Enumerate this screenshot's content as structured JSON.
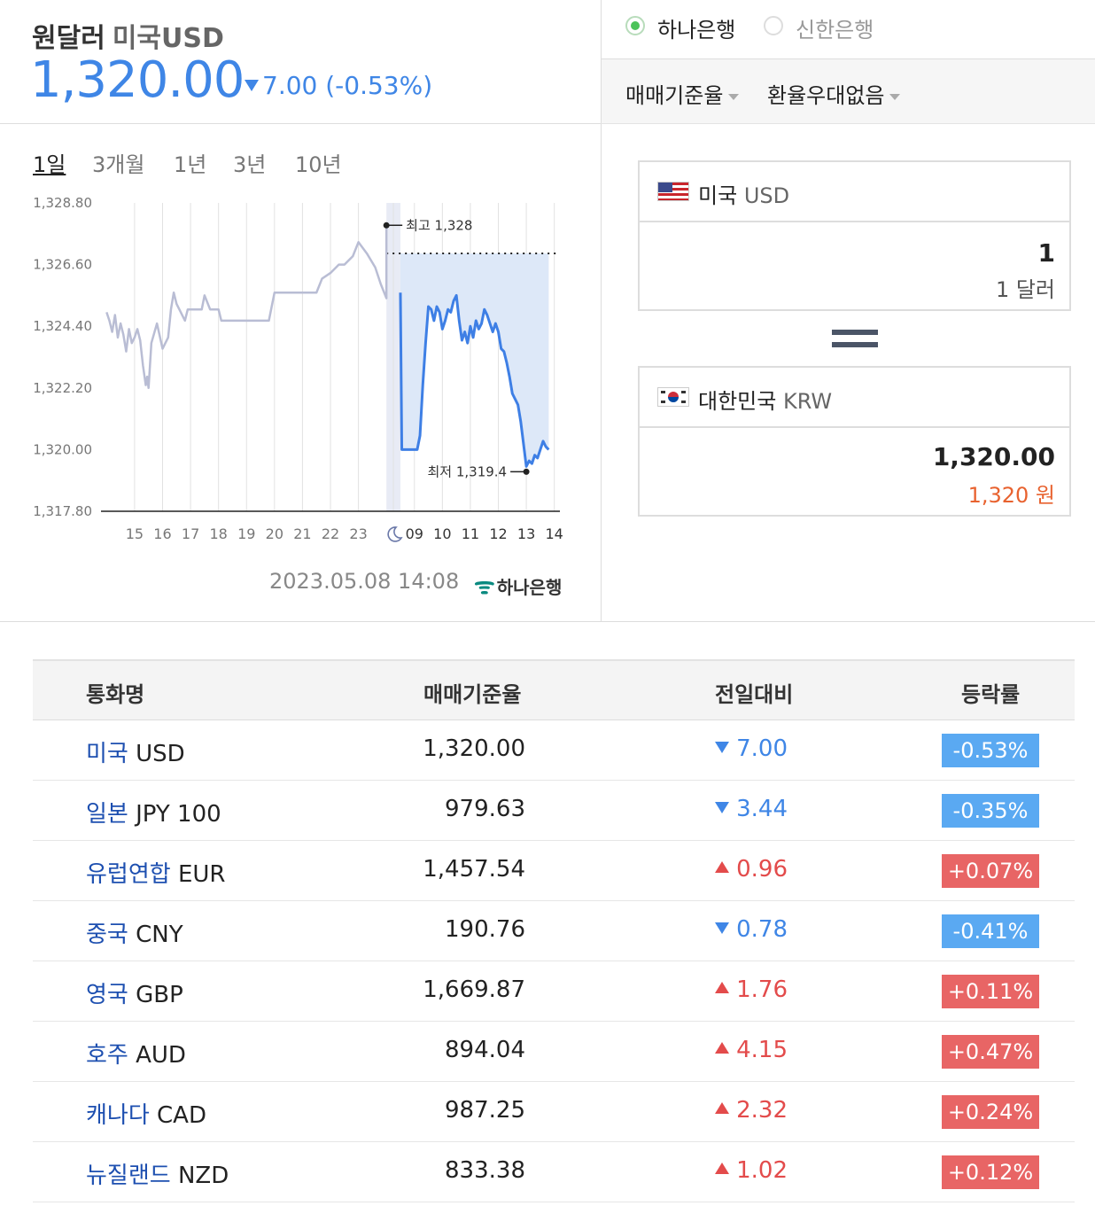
{
  "header": {
    "title": "원달러",
    "subtitle": "미국USD",
    "rate": "1,320.00",
    "change": "7.00 (-0.53%)",
    "direction": "down"
  },
  "banks": [
    {
      "label": "하나은행",
      "selected": true
    },
    {
      "label": "신한은행",
      "selected": false
    }
  ],
  "dropdowns": {
    "rate_type": "매매기준율",
    "preference": "환율우대없음"
  },
  "periods": [
    "1일",
    "3개월",
    "1년",
    "3년",
    "10년"
  ],
  "active_period": "1일",
  "chart_meta": {
    "timestamp": "2023.05.08 14:08",
    "bank_logo_text": "하나은행",
    "high_label": "최고 1,328",
    "low_label": "최저 1,319.4"
  },
  "chart_data": {
    "type": "line",
    "y_ticks": [
      "1,328.80",
      "1,326.60",
      "1,324.40",
      "1,322.20",
      "1,320.00",
      "1,317.80"
    ],
    "ylim": [
      1317.8,
      1328.8
    ],
    "x_ticks": [
      "15",
      "16",
      "17",
      "18",
      "19",
      "20",
      "21",
      "22",
      "23",
      "moon",
      "09",
      "10",
      "11",
      "12",
      "13",
      "14"
    ],
    "grid": true,
    "previous_close": 1327.0,
    "high": 1328,
    "low": 1319.4,
    "series": [
      {
        "segment": "overnight",
        "color": "#b9bdd4",
        "points": [
          [
            14.0,
            1324.9
          ],
          [
            14.1,
            1324.6
          ],
          [
            14.2,
            1324.2
          ],
          [
            14.3,
            1324.8
          ],
          [
            14.4,
            1324.0
          ],
          [
            14.5,
            1324.5
          ],
          [
            14.6,
            1324.1
          ],
          [
            14.7,
            1323.5
          ],
          [
            14.8,
            1324.3
          ],
          [
            14.9,
            1323.8
          ],
          [
            15.0,
            1324.0
          ],
          [
            15.1,
            1324.3
          ],
          [
            15.2,
            1323.9
          ],
          [
            15.3,
            1323.0
          ],
          [
            15.4,
            1322.3
          ],
          [
            15.45,
            1322.6
          ],
          [
            15.5,
            1322.2
          ],
          [
            15.6,
            1323.8
          ],
          [
            15.8,
            1324.5
          ],
          [
            16.0,
            1323.6
          ],
          [
            16.2,
            1324.0
          ],
          [
            16.3,
            1325.0
          ],
          [
            16.4,
            1325.6
          ],
          [
            16.5,
            1325.2
          ],
          [
            16.6,
            1325.0
          ],
          [
            16.8,
            1324.6
          ],
          [
            16.9,
            1325.0
          ],
          [
            17.4,
            1325.0
          ],
          [
            17.5,
            1325.5
          ],
          [
            17.7,
            1325.0
          ],
          [
            18.0,
            1325.0
          ],
          [
            18.1,
            1324.6
          ],
          [
            19.8,
            1324.6
          ],
          [
            19.9,
            1325.1
          ],
          [
            20.0,
            1325.6
          ],
          [
            21.5,
            1325.6
          ],
          [
            21.7,
            1326.1
          ],
          [
            22.0,
            1326.3
          ],
          [
            22.3,
            1326.6
          ],
          [
            22.5,
            1326.6
          ],
          [
            22.8,
            1326.9
          ],
          [
            23.0,
            1327.4
          ],
          [
            23.3,
            1327.0
          ],
          [
            23.6,
            1326.5
          ],
          [
            23.8,
            1325.9
          ],
          [
            24.0,
            1325.4
          ],
          [
            24.0,
            1328.0
          ]
        ]
      },
      {
        "segment": "today",
        "color": "#3e7fe5",
        "points": [
          [
            24.5,
            1325.6
          ],
          [
            24.55,
            1320.0
          ],
          [
            25.1,
            1320.0
          ],
          [
            25.2,
            1320.5
          ],
          [
            25.3,
            1322.3
          ],
          [
            25.4,
            1323.8
          ],
          [
            25.5,
            1325.1
          ],
          [
            25.6,
            1325.0
          ],
          [
            25.7,
            1324.6
          ],
          [
            25.8,
            1325.1
          ],
          [
            25.9,
            1324.9
          ],
          [
            26.0,
            1324.3
          ],
          [
            26.1,
            1324.6
          ],
          [
            26.2,
            1325.0
          ],
          [
            26.3,
            1324.9
          ],
          [
            26.4,
            1325.3
          ],
          [
            26.5,
            1325.5
          ],
          [
            26.6,
            1324.6
          ],
          [
            26.7,
            1323.9
          ],
          [
            26.8,
            1324.2
          ],
          [
            26.9,
            1323.8
          ],
          [
            27.0,
            1324.4
          ],
          [
            27.1,
            1324.0
          ],
          [
            27.2,
            1324.6
          ],
          [
            27.3,
            1324.3
          ],
          [
            27.4,
            1324.5
          ],
          [
            27.5,
            1325.0
          ],
          [
            27.6,
            1324.8
          ],
          [
            27.7,
            1324.5
          ],
          [
            27.8,
            1324.2
          ],
          [
            27.9,
            1324.5
          ],
          [
            28.0,
            1324.2
          ],
          [
            28.1,
            1323.6
          ],
          [
            28.2,
            1323.5
          ],
          [
            28.3,
            1323.1
          ],
          [
            28.4,
            1322.6
          ],
          [
            28.5,
            1322.0
          ],
          [
            28.6,
            1321.8
          ],
          [
            28.7,
            1321.6
          ],
          [
            28.8,
            1321.0
          ],
          [
            28.9,
            1320.2
          ],
          [
            29.0,
            1319.4
          ],
          [
            29.1,
            1319.6
          ],
          [
            29.2,
            1319.5
          ],
          [
            29.3,
            1319.8
          ],
          [
            29.4,
            1319.7
          ],
          [
            29.5,
            1320.0
          ],
          [
            29.6,
            1320.3
          ],
          [
            29.7,
            1320.1
          ],
          [
            29.8,
            1320.0
          ]
        ]
      }
    ]
  },
  "converter": {
    "from": {
      "name": "미국",
      "code": "USD",
      "amount": "1",
      "amount_text": "1 달러"
    },
    "to": {
      "name": "대한민국",
      "code": "KRW",
      "amount": "1,320.00",
      "amount_text": "1,320 원"
    }
  },
  "table": {
    "headers": [
      "통화명",
      "매매기준율",
      "전일대비",
      "등락률"
    ],
    "rows": [
      {
        "name": "미국",
        "code": "USD",
        "rate": "1,320.00",
        "change": "7.00",
        "pct": "-0.53%",
        "dir": "down"
      },
      {
        "name": "일본",
        "code": "JPY 100",
        "rate": "979.63",
        "change": "3.44",
        "pct": "-0.35%",
        "dir": "down"
      },
      {
        "name": "유럽연합",
        "code": "EUR",
        "rate": "1,457.54",
        "change": "0.96",
        "pct": "+0.07%",
        "dir": "up"
      },
      {
        "name": "중국",
        "code": "CNY",
        "rate": "190.76",
        "change": "0.78",
        "pct": "-0.41%",
        "dir": "down"
      },
      {
        "name": "영국",
        "code": "GBP",
        "rate": "1,669.87",
        "change": "1.76",
        "pct": "+0.11%",
        "dir": "up"
      },
      {
        "name": "호주",
        "code": "AUD",
        "rate": "894.04",
        "change": "4.15",
        "pct": "+0.47%",
        "dir": "up"
      },
      {
        "name": "캐나다",
        "code": "CAD",
        "rate": "987.25",
        "change": "2.32",
        "pct": "+0.24%",
        "dir": "up"
      },
      {
        "name": "뉴질랜드",
        "code": "NZD",
        "rate": "833.38",
        "change": "1.02",
        "pct": "+0.12%",
        "dir": "up"
      }
    ]
  }
}
